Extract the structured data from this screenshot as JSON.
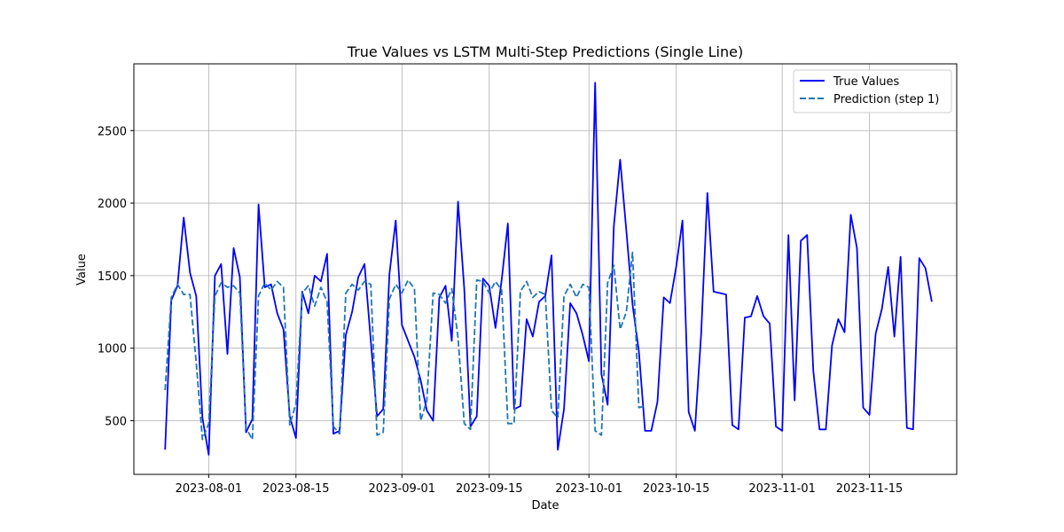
{
  "chart_data": {
    "type": "line",
    "title": "True Values vs LSTM Multi-Step Predictions (Single Line)",
    "xlabel": "Date",
    "ylabel": "Value",
    "grid": true,
    "legend_position": "top-right",
    "xlim": [
      "2023-07-20",
      "2023-11-29"
    ],
    "ylim": [
      130,
      2960
    ],
    "x_ticks": [
      "2023-08-01",
      "2023-08-15",
      "2023-09-01",
      "2023-09-15",
      "2023-10-01",
      "2023-10-15",
      "2023-11-01",
      "2023-11-15"
    ],
    "y_ticks": [
      500,
      1000,
      1500,
      2000,
      2500
    ],
    "start_date": "2023-07-25",
    "series": [
      {
        "name": "True Values",
        "color": "#0000ff",
        "style": "solid",
        "values": [
          300,
          1330,
          1430,
          1900,
          1520,
          1360,
          520,
          265,
          1500,
          1580,
          960,
          1690,
          1490,
          420,
          510,
          1990,
          1420,
          1440,
          1240,
          1130,
          530,
          380,
          1390,
          1240,
          1500,
          1460,
          1650,
          410,
          430,
          1090,
          1250,
          1490,
          1580,
          1050,
          530,
          580,
          1510,
          1880,
          1160,
          1050,
          940,
          780,
          570,
          500,
          1350,
          1430,
          1050,
          2010,
          1410,
          460,
          530,
          1480,
          1430,
          1140,
          1470,
          1860,
          580,
          600,
          1200,
          1080,
          1320,
          1360,
          1640,
          300,
          580,
          1310,
          1240,
          1090,
          910,
          2830,
          820,
          610,
          1840,
          2300,
          1810,
          1300,
          980,
          430,
          430,
          630,
          1350,
          1310,
          1560,
          1880,
          560,
          430,
          1100,
          2070,
          1390,
          1380,
          1370,
          470,
          440,
          1210,
          1220,
          1360,
          1220,
          1170,
          460,
          430,
          1780,
          640,
          1740,
          1780,
          840,
          440,
          440,
          1020,
          1200,
          1110,
          1920,
          1690,
          590,
          540,
          1100,
          1270,
          1560,
          1080,
          1630,
          450,
          440,
          1620,
          1550,
          1320
        ]
      },
      {
        "name": "Prediction (step 1)",
        "color": "#1f77b4",
        "style": "dashed",
        "values": [
          710,
          1350,
          1440,
          1370,
          1370,
          900,
          370,
          480,
          1360,
          1450,
          1420,
          1430,
          1380,
          450,
          370,
          1360,
          1450,
          1400,
          1460,
          1420,
          470,
          620,
          1380,
          1430,
          1290,
          1420,
          1320,
          460,
          410,
          1380,
          1440,
          1400,
          1460,
          1440,
          400,
          420,
          1340,
          1440,
          1380,
          1470,
          1410,
          500,
          640,
          1380,
          1370,
          1310,
          1410,
          1070,
          480,
          440,
          1470,
          1460,
          1380,
          1460,
          1400,
          480,
          480,
          1390,
          1460,
          1350,
          1390,
          1370,
          570,
          520,
          1360,
          1440,
          1350,
          1440,
          1420,
          430,
          400,
          1450,
          1570,
          1130,
          1250,
          1660,
          590,
          600
        ]
      }
    ]
  }
}
